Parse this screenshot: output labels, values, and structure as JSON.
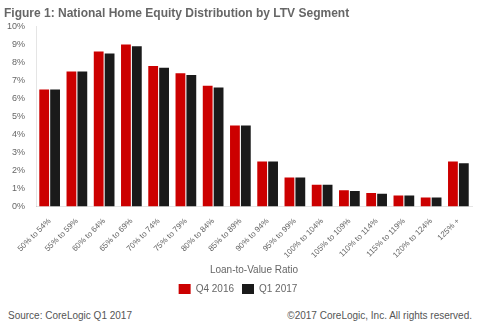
{
  "chart_data": {
    "type": "bar",
    "title": "Figure 1: National Home Equity Distribution by LTV Segment",
    "xlabel": "Loan-to-Value Ratio",
    "categories": [
      "50% to 54%",
      "55% to 59%",
      "60% to 64%",
      "65% to 69%",
      "70% to 74%",
      "75% to 79%",
      "80% to 84%",
      "85% to 89%",
      "90% to 94%",
      "95% to 99%",
      "100% to 104%",
      "105% to 109%",
      "110% to 114%",
      "115% to 119%",
      "120% to 124%",
      "125% +"
    ],
    "series": [
      {
        "name": "Q4 2016",
        "color": "#CC0000",
        "values": [
          6.5,
          7.5,
          8.6,
          9.0,
          7.8,
          7.4,
          6.7,
          4.5,
          2.5,
          1.6,
          1.2,
          0.9,
          0.75,
          0.6,
          0.5,
          2.5
        ]
      },
      {
        "name": "Q1 2017",
        "color": "#1a1a1a",
        "values": [
          6.5,
          7.5,
          8.5,
          8.9,
          7.7,
          7.3,
          6.6,
          4.5,
          2.5,
          1.6,
          1.2,
          0.85,
          0.7,
          0.6,
          0.5,
          2.4
        ]
      }
    ],
    "ylim": [
      0,
      10
    ],
    "yticks": [
      {
        "value": 0,
        "label": "0%"
      },
      {
        "value": 1,
        "label": "1%"
      },
      {
        "value": 2,
        "label": "2%"
      },
      {
        "value": 3,
        "label": "3%"
      },
      {
        "value": 4,
        "label": "4%"
      },
      {
        "value": 5,
        "label": "5%"
      },
      {
        "value": 6,
        "label": "6%"
      },
      {
        "value": 7,
        "label": "7%"
      },
      {
        "value": 8,
        "label": "8%"
      },
      {
        "value": 9,
        "label": "9%"
      },
      {
        "value": 10,
        "label": "10%"
      }
    ],
    "annotations": [
      "Source: CoreLogic Q1 2017",
      "©2017 CoreLogic, Inc. All rights reserved."
    ],
    "legend": "bottom",
    "grid": false
  }
}
